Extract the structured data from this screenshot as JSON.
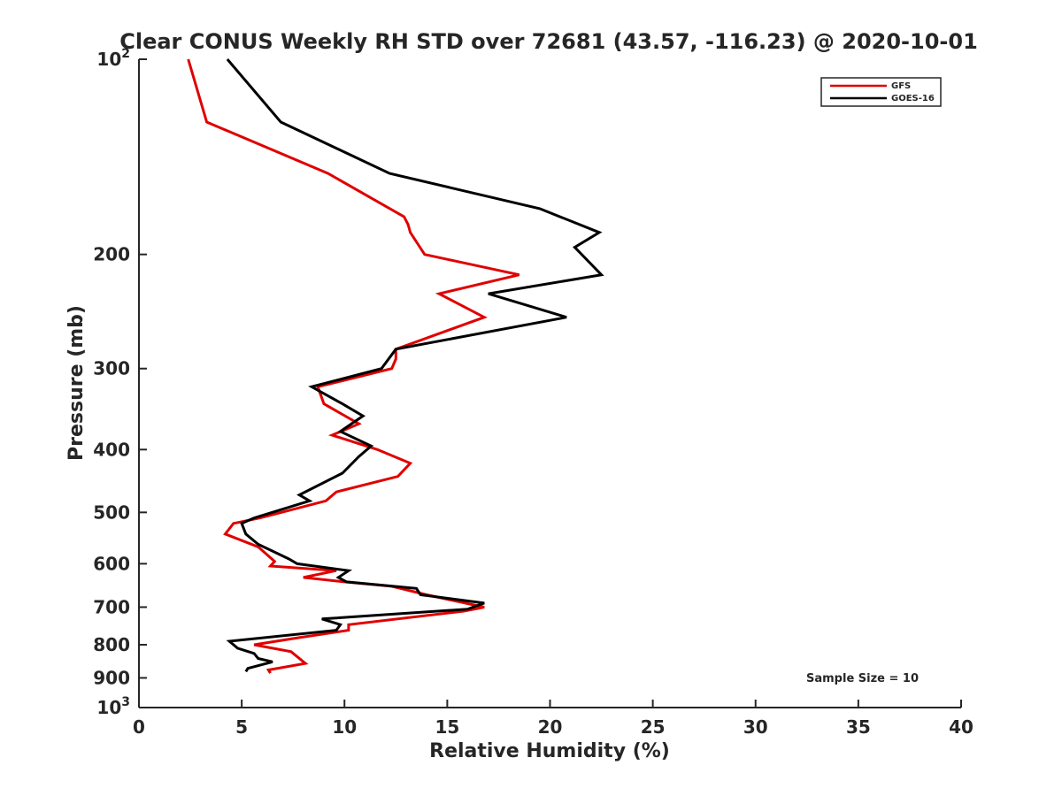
{
  "chart_data": {
    "type": "line",
    "title": "Clear CONUS Weekly RH STD over 72681 (43.57, -116.23) @ 2020-10-01",
    "xlabel": "Relative Humidity (%)",
    "ylabel": "Pressure (mb)",
    "xlim": [
      0,
      40
    ],
    "ylim": [
      1000,
      100
    ],
    "y_scale": "log",
    "grid": false,
    "legend_position": "top-right",
    "x_ticks": [
      0,
      5,
      10,
      15,
      20,
      25,
      30,
      35,
      40
    ],
    "x_tick_labels": [
      "0",
      "5",
      "10",
      "15",
      "20",
      "25",
      "30",
      "35",
      "40"
    ],
    "y_ticks": [
      {
        "value": 100,
        "base": "10",
        "exp": "2"
      },
      {
        "value": 200,
        "label": "200"
      },
      {
        "value": 300,
        "label": "300"
      },
      {
        "value": 400,
        "label": "400"
      },
      {
        "value": 500,
        "label": "500"
      },
      {
        "value": 600,
        "label": "600"
      },
      {
        "value": 700,
        "label": "700"
      },
      {
        "value": 800,
        "label": "800"
      },
      {
        "value": 900,
        "label": "900"
      },
      {
        "value": 1000,
        "base": "10",
        "exp": "3"
      }
    ],
    "series": [
      {
        "name": "GFS",
        "color": "#e00000",
        "points": [
          [
            2.4,
            100
          ],
          [
            3.3,
            125
          ],
          [
            9.2,
            150
          ],
          [
            12.9,
            175
          ],
          [
            13.1,
            180
          ],
          [
            13.2,
            185
          ],
          [
            13.9,
            200
          ],
          [
            18.5,
            215
          ],
          [
            14.6,
            230
          ],
          [
            16.8,
            250
          ],
          [
            12.5,
            280
          ],
          [
            12.5,
            290
          ],
          [
            12.3,
            300
          ],
          [
            8.7,
            320
          ],
          [
            9.0,
            340
          ],
          [
            10.7,
            365
          ],
          [
            9.4,
            380
          ],
          [
            11.6,
            400
          ],
          [
            13.2,
            420
          ],
          [
            12.6,
            440
          ],
          [
            9.6,
            465
          ],
          [
            9.1,
            480
          ],
          [
            5.9,
            510
          ],
          [
            4.6,
            520
          ],
          [
            4.2,
            540
          ],
          [
            5.8,
            565
          ],
          [
            6.6,
            595
          ],
          [
            6.4,
            605
          ],
          [
            9.6,
            615
          ],
          [
            8.0,
            630
          ],
          [
            10.0,
            640
          ],
          [
            12.3,
            650
          ],
          [
            14.0,
            670
          ],
          [
            16.8,
            700
          ],
          [
            15.8,
            710
          ],
          [
            10.2,
            745
          ],
          [
            10.2,
            760
          ],
          [
            7.8,
            780
          ],
          [
            5.6,
            800
          ],
          [
            7.4,
            820
          ],
          [
            8.1,
            855
          ],
          [
            6.3,
            875
          ],
          [
            6.4,
            885
          ]
        ]
      },
      {
        "name": "GOES-16",
        "color": "#000000",
        "points": [
          [
            4.3,
            100
          ],
          [
            6.9,
            125
          ],
          [
            12.2,
            150
          ],
          [
            19.5,
            170
          ],
          [
            22.4,
            185
          ],
          [
            21.2,
            195
          ],
          [
            22.5,
            215
          ],
          [
            17.0,
            230
          ],
          [
            20.8,
            250
          ],
          [
            12.5,
            280
          ],
          [
            11.8,
            300
          ],
          [
            8.4,
            320
          ],
          [
            9.9,
            340
          ],
          [
            10.9,
            355
          ],
          [
            9.8,
            375
          ],
          [
            11.3,
            395
          ],
          [
            10.7,
            410
          ],
          [
            9.9,
            435
          ],
          [
            7.8,
            470
          ],
          [
            8.3,
            480
          ],
          [
            5.6,
            510
          ],
          [
            5.0,
            520
          ],
          [
            5.2,
            540
          ],
          [
            5.8,
            560
          ],
          [
            7.3,
            590
          ],
          [
            7.7,
            600
          ],
          [
            10.2,
            615
          ],
          [
            9.7,
            630
          ],
          [
            10.1,
            640
          ],
          [
            13.5,
            655
          ],
          [
            13.7,
            670
          ],
          [
            16.8,
            690
          ],
          [
            16.0,
            705
          ],
          [
            8.9,
            730
          ],
          [
            9.8,
            745
          ],
          [
            9.6,
            760
          ],
          [
            4.4,
            790
          ],
          [
            4.8,
            810
          ],
          [
            5.6,
            825
          ],
          [
            5.8,
            840
          ],
          [
            6.5,
            850
          ],
          [
            5.3,
            870
          ],
          [
            5.2,
            880
          ]
        ]
      }
    ],
    "annotation": "Sample Size = 10"
  }
}
